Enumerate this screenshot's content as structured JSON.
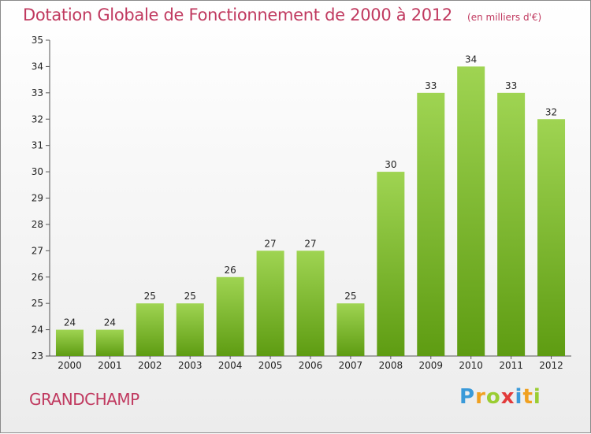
{
  "title": "Dotation Globale de Fonctionnement de 2000 à 2012",
  "unit": "(en milliers d'€)",
  "commune": "GRANDCHAMP",
  "logo": {
    "letters": [
      "P",
      "r",
      "o",
      "x",
      "i",
      "t",
      "i"
    ],
    "colors": [
      "#3a9ad9",
      "#f0a020",
      "#9acd32",
      "#e23b3b",
      "#3a9ad9",
      "#f0a020",
      "#9acd32"
    ]
  },
  "colors": {
    "bar_top": "#9fd452",
    "bar_bottom": "#5e9c12",
    "title": "#c0395f"
  },
  "chart_data": {
    "type": "bar",
    "title": "Dotation Globale de Fonctionnement de 2000 à 2012",
    "subtitle": "(en milliers d'€)",
    "xlabel": "",
    "ylabel": "",
    "categories": [
      "2000",
      "2001",
      "2002",
      "2003",
      "2004",
      "2005",
      "2006",
      "2007",
      "2008",
      "2009",
      "2010",
      "2011",
      "2012"
    ],
    "values": [
      24,
      24,
      25,
      25,
      26,
      27,
      27,
      25,
      30,
      33,
      34,
      33,
      32
    ],
    "ylim": [
      23,
      35
    ],
    "yticks": [
      23,
      24,
      25,
      26,
      27,
      28,
      29,
      30,
      31,
      32,
      33,
      34,
      35
    ],
    "grid": false,
    "legend": "none"
  }
}
